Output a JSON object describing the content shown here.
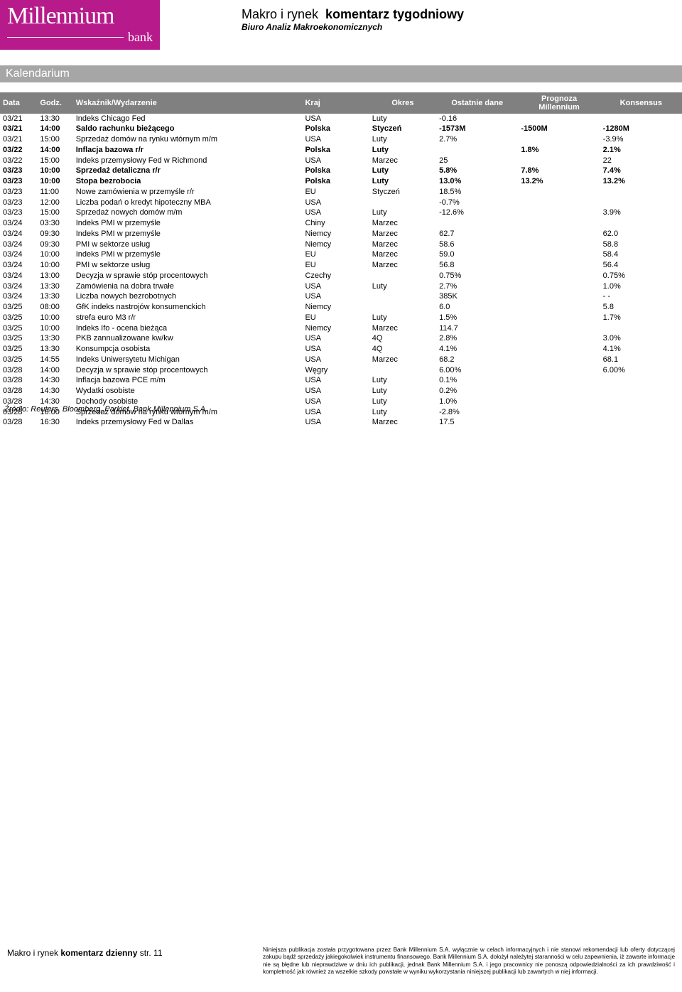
{
  "logo": {
    "main": "Millennium",
    "sub": "bank"
  },
  "header": {
    "title_regular": "Makro i rynek",
    "title_bold": "komentarz tygodniowy",
    "subtitle": "Biuro Analiz Makroekonomicznych"
  },
  "section_title": "Kalendarium",
  "table": {
    "columns": [
      "Data",
      "Godz.",
      "Wskaźnik/Wydarzenie",
      "Kraj",
      "Okres",
      "Ostatnie dane",
      "Prognoza Millennium",
      "Konsensus"
    ],
    "rows": [
      {
        "bold": false,
        "c": [
          "03/21",
          "13:30",
          "Indeks Chicago Fed",
          "USA",
          "Luty",
          "-0.16",
          "",
          ""
        ]
      },
      {
        "bold": true,
        "c": [
          "03/21",
          "14:00",
          "Saldo rachunku bieżącego",
          "Polska",
          "Styczeń",
          "-1573M",
          "-1500M",
          "-1280M"
        ]
      },
      {
        "bold": false,
        "c": [
          "03/21",
          "15:00",
          "Sprzedaż domów na rynku wtórnym m/m",
          "USA",
          "Luty",
          "2.7%",
          "",
          "-3.9%"
        ]
      },
      {
        "bold": true,
        "c": [
          "03/22",
          "14:00",
          "Inflacja bazowa r/r",
          "Polska",
          "Luty",
          "",
          "1.8%",
          "2.1%"
        ]
      },
      {
        "bold": false,
        "c": [
          "03/22",
          "15:00",
          "Indeks przemysłowy Fed w Richmond",
          "USA",
          "Marzec",
          "25",
          "",
          "22"
        ]
      },
      {
        "bold": true,
        "c": [
          "03/23",
          "10:00",
          "Sprzedaż detaliczna r/r",
          "Polska",
          "Luty",
          "5.8%",
          "7.8%",
          "7.4%"
        ]
      },
      {
        "bold": true,
        "c": [
          "03/23",
          "10:00",
          "Stopa bezrobocia",
          "Polska",
          "Luty",
          "13.0%",
          "13.2%",
          "13.2%"
        ]
      },
      {
        "bold": false,
        "c": [
          "03/23",
          "11:00",
          "Nowe zamówienia w przemyśle r/r",
          "EU",
          "Styczeń",
          "18.5%",
          "",
          ""
        ]
      },
      {
        "bold": false,
        "c": [
          "03/23",
          "12:00",
          "Liczba podań o kredyt hipoteczny MBA",
          "USA",
          "",
          "-0.7%",
          "",
          ""
        ]
      },
      {
        "bold": false,
        "c": [
          "03/23",
          "15:00",
          "Sprzedaż nowych domów m/m",
          "USA",
          "Luty",
          "-12.6%",
          "",
          "3.9%"
        ]
      },
      {
        "bold": false,
        "c": [
          "03/24",
          "03:30",
          "Indeks PMI w przemyśle",
          "Chiny",
          "Marzec",
          "",
          "",
          ""
        ]
      },
      {
        "bold": false,
        "c": [
          "03/24",
          "09:30",
          "Indeks PMI w przemyśle",
          "Niemcy",
          "Marzec",
          "62.7",
          "",
          "62.0"
        ]
      },
      {
        "bold": false,
        "c": [
          "03/24",
          "09:30",
          "PMI w sektorze usług",
          "Niemcy",
          "Marzec",
          "58.6",
          "",
          "58.8"
        ]
      },
      {
        "bold": false,
        "c": [
          "03/24",
          "10:00",
          "Indeks PMI w przemyśle",
          "EU",
          "Marzec",
          "59.0",
          "",
          "58.4"
        ]
      },
      {
        "bold": false,
        "c": [
          "03/24",
          "10:00",
          "PMI w sektorze usług",
          "EU",
          "Marzec",
          "56.8",
          "",
          "56.4"
        ]
      },
      {
        "bold": false,
        "c": [
          "03/24",
          "13:00",
          "Decyzja w sprawie stóp procentowych",
          "Czechy",
          "",
          "0.75%",
          "",
          "0.75%"
        ]
      },
      {
        "bold": false,
        "c": [
          "03/24",
          "13:30",
          "Zamówienia na dobra trwałe",
          "USA",
          "Luty",
          "2.7%",
          "",
          "1.0%"
        ]
      },
      {
        "bold": false,
        "c": [
          "03/24",
          "13:30",
          "Liczba nowych bezrobotnych",
          "USA",
          "",
          "385K",
          "",
          "- -"
        ]
      },
      {
        "bold": false,
        "c": [
          "03/25",
          "08:00",
          "GfK indeks nastrojów konsumenckich",
          "Niemcy",
          "",
          "6.0",
          "",
          "5.8"
        ]
      },
      {
        "bold": false,
        "c": [
          "03/25",
          "10:00",
          "strefa euro M3 r/r",
          "EU",
          "Luty",
          "1.5%",
          "",
          "1.7%"
        ]
      },
      {
        "bold": false,
        "c": [
          "03/25",
          "10:00",
          "Indeks Ifo - ocena bieżąca",
          "Niemcy",
          "Marzec",
          "114.7",
          "",
          ""
        ]
      },
      {
        "bold": false,
        "c": [
          "03/25",
          "13:30",
          "PKB zannualizowane kw/kw",
          "USA",
          "4Q",
          "2.8%",
          "",
          "3.0%"
        ]
      },
      {
        "bold": false,
        "c": [
          "03/25",
          "13:30",
          "Konsumpcja osobista",
          "USA",
          "4Q",
          "4.1%",
          "",
          "4.1%"
        ]
      },
      {
        "bold": false,
        "c": [
          "03/25",
          "14:55",
          "Indeks Uniwersytetu Michigan",
          "USA",
          "Marzec",
          "68.2",
          "",
          "68.1"
        ]
      },
      {
        "bold": false,
        "c": [
          "03/28",
          "14:00",
          "Decyzja w sprawie stóp procentowych",
          "Węgry",
          "",
          "6.00%",
          "",
          "6.00%"
        ]
      },
      {
        "bold": false,
        "c": [
          "03/28",
          "14:30",
          "Inflacja bazowa PCE m/m",
          "USA",
          "Luty",
          "0.1%",
          "",
          ""
        ]
      },
      {
        "bold": false,
        "c": [
          "03/28",
          "14:30",
          "Wydatki osobiste",
          "USA",
          "Luty",
          "0.2%",
          "",
          ""
        ]
      },
      {
        "bold": false,
        "c": [
          "03/28",
          "14:30",
          "Dochody osobiste",
          "USA",
          "Luty",
          "1.0%",
          "",
          ""
        ]
      },
      {
        "bold": false,
        "c": [
          "03/28",
          "16:00",
          "Sprzedaż domów na rynku wtórnym m/m",
          "USA",
          "Luty",
          "-2.8%",
          "",
          ""
        ]
      },
      {
        "bold": false,
        "c": [
          "03/28",
          "16:30",
          "Indeks przemysłowy Fed w Dallas",
          "USA",
          "Marzec",
          "17.5",
          "",
          ""
        ]
      }
    ]
  },
  "source": "Źródło: Reuters, Bloomberg, Parkiet, Bank Millennium S.A.",
  "footer": {
    "left_regular": "Makro i rynek ",
    "left_bold": "komentarz dzienny ",
    "left_page": "str. 11",
    "disclaimer": "Niniejsza publikacja została przygotowana przez Bank Millennium S.A. wyłącznie w celach informacyjnych i nie stanowi rekomendacji lub oferty dotyczącej zakupu bądź sprzedaży jakiegokolwiek instrumentu finansowego. Bank Millennium S.A. dołożył należytej staranności w celu zapewnienia, iż zawarte informacje nie są błędne lub nieprawdziwe w dniu ich publikacji, jednak Bank Millennium S.A. i jego pracownicy nie ponoszą odpowiedzialności za ich prawdziwość i kompletność jak również za wszelkie szkody powstałe w wyniku wykorzystania niniejszej publikacji lub zawartych w niej informacji."
  }
}
